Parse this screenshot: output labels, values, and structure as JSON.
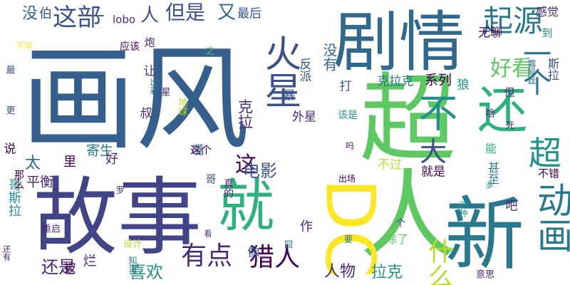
{
  "words": [
    {
      "text": "画风",
      "color": "#355f8d",
      "o": "h"
    },
    {
      "text": "超人",
      "color": "#5ec962",
      "o": "v"
    },
    {
      "text": "故事",
      "color": "#414487",
      "o": "h"
    },
    {
      "text": "剧情",
      "color": "#31688e",
      "o": "h"
    },
    {
      "text": "新",
      "color": "#2a788e",
      "o": "h"
    },
    {
      "text": "DC",
      "color": "#fde725",
      "o": "r"
    },
    {
      "text": "就",
      "color": "#2db27d",
      "o": "h"
    },
    {
      "text": "火星",
      "color": "#3b528b",
      "o": "v"
    },
    {
      "text": "还",
      "color": "#2db27d",
      "o": "h"
    },
    {
      "text": "一个",
      "color": "#2a788e",
      "o": "v"
    },
    {
      "text": "动画",
      "color": "#2a788e",
      "o": "v"
    },
    {
      "text": "起源",
      "color": "#2a788e",
      "o": "h"
    },
    {
      "text": "不",
      "color": "#21918c",
      "o": "h"
    },
    {
      "text": "超",
      "color": "#21918c",
      "o": "h"
    },
    {
      "text": "大",
      "color": "#3b528b",
      "o": "h"
    },
    {
      "text": "有点",
      "color": "#482878",
      "o": "h"
    },
    {
      "text": "猎人",
      "color": "#440154",
      "o": "h"
    },
    {
      "text": "这部",
      "color": "#3b528b",
      "o": "h"
    },
    {
      "text": "但是",
      "color": "#3b528b",
      "o": "h"
    },
    {
      "text": "好看",
      "color": "#5ec962",
      "o": "h"
    },
    {
      "text": "什么",
      "color": "#b5de2b",
      "o": "v"
    },
    {
      "text": "没有",
      "color": "#31688e",
      "o": "v"
    },
    {
      "text": "人",
      "color": "#3b528b",
      "o": "h"
    },
    {
      "text": "又",
      "color": "#31688e",
      "o": "h"
    },
    {
      "text": "这",
      "color": "#440154",
      "o": "h"
    },
    {
      "text": "电影",
      "color": "#3b528b",
      "o": "h"
    },
    {
      "text": "太",
      "color": "#31688e",
      "o": "h"
    },
    {
      "text": "还是",
      "color": "#482878",
      "o": "h"
    },
    {
      "text": "喜欢",
      "color": "#21918c",
      "o": "h"
    },
    {
      "text": "人物",
      "color": "#482878",
      "o": "h"
    },
    {
      "text": "拉克",
      "color": "#21918c",
      "o": "h"
    },
    {
      "text": "没",
      "color": "#31688e",
      "o": "h"
    },
    {
      "text": "伯",
      "color": "#3b528b",
      "o": "h"
    },
    {
      "text": "—",
      "color": "#3b528b",
      "o": "h"
    },
    {
      "text": "lobo",
      "color": "#482878",
      "o": "h"
    },
    {
      "text": "最后",
      "color": "#3b528b",
      "o": "h"
    },
    {
      "text": "感觉",
      "color": "#482878",
      "o": "h"
    },
    {
      "text": "无聊",
      "color": "#440154",
      "o": "h"
    },
    {
      "text": "到",
      "color": "#21918c",
      "o": "h"
    },
    {
      "text": "炮",
      "color": "#482878",
      "o": "h"
    },
    {
      "text": "之",
      "color": "#5ec962",
      "o": "h"
    },
    {
      "text": "反派",
      "color": "#3b528b",
      "o": "v"
    },
    {
      "text": "克拉克",
      "color": "#2a788e",
      "o": "h"
    },
    {
      "text": "系列",
      "color": "#440154",
      "o": "h"
    },
    {
      "text": "让",
      "color": "#482878",
      "o": "h"
    },
    {
      "text": "狼",
      "color": "#21918c",
      "o": "h"
    },
    {
      "text": "但",
      "color": "#482878",
      "o": "h"
    },
    {
      "text": "暴",
      "color": "#3b528b",
      "o": "h"
    },
    {
      "text": "打",
      "color": "#3b528b",
      "o": "h"
    },
    {
      "text": "叔",
      "color": "#482878",
      "o": "h"
    },
    {
      "text": "星",
      "color": "#482878",
      "o": "h"
    },
    {
      "text": "地球",
      "color": "#b5de2b",
      "o": "v"
    },
    {
      "text": "克拉",
      "color": "#482878",
      "o": "v"
    },
    {
      "text": "外星",
      "color": "#482878",
      "o": "h"
    },
    {
      "text": "该是",
      "color": "#21918c",
      "o": "h"
    },
    {
      "text": "出彩",
      "color": "#2a788e",
      "o": "v"
    },
    {
      "text": "应该",
      "color": "#440154",
      "o": "h"
    },
    {
      "text": "寄生",
      "color": "#2a788e",
      "o": "h"
    },
    {
      "text": "嘴",
      "color": "#31688e",
      "o": "h"
    },
    {
      "text": "这个",
      "color": "#440154",
      "o": "h"
    },
    {
      "text": "里",
      "color": "#440154",
      "o": "h"
    },
    {
      "text": "好",
      "color": "#482878",
      "o": "h"
    },
    {
      "text": "能",
      "color": "#2db27d",
      "o": "h"
    },
    {
      "text": "死",
      "color": "#482878",
      "o": "h"
    },
    {
      "text": "不过",
      "color": "#b5de2b",
      "o": "h"
    },
    {
      "text": "就是",
      "color": "#440154",
      "o": "h"
    },
    {
      "text": "甚至",
      "color": "#2a788e",
      "o": "v"
    },
    {
      "text": "吧",
      "color": "#482878",
      "o": "h"
    },
    {
      "text": "不错",
      "color": "#440154",
      "o": "h"
    },
    {
      "text": "多",
      "color": "#21918c",
      "o": "h"
    },
    {
      "text": "出场",
      "color": "#440154",
      "o": "h"
    },
    {
      "text": "吗",
      "color": "#482878",
      "o": "h"
    },
    {
      "text": "哥",
      "color": "#3b528b",
      "o": "h"
    },
    {
      "text": "平衡",
      "color": "#482878",
      "o": "h"
    },
    {
      "text": "哥斯拉",
      "color": "#21918c",
      "o": "v"
    },
    {
      "text": "那么",
      "color": "#440154",
      "o": "v"
    },
    {
      "text": "说",
      "color": "#440154",
      "o": "h"
    },
    {
      "text": "更",
      "color": "#3b528b",
      "o": "h"
    },
    {
      "text": "最",
      "color": "#3b528b",
      "o": "h"
    },
    {
      "text": "不知",
      "color": "#fde725",
      "o": "h"
    },
    {
      "text": "还有",
      "color": "#482878",
      "o": "v"
    },
    {
      "text": "知道",
      "color": "#2a788e",
      "o": "v"
    },
    {
      "text": "罗",
      "color": "#482878",
      "o": "h"
    },
    {
      "text": "重启",
      "color": "#482878",
      "o": "h"
    },
    {
      "text": "设计",
      "color": "#b5de2b",
      "o": "h"
    },
    {
      "text": "真的",
      "color": "#482878",
      "o": "v"
    },
    {
      "text": "作",
      "color": "#482878",
      "o": "h"
    },
    {
      "text": "看",
      "color": "#482878",
      "o": "h"
    },
    {
      "text": "像",
      "color": "#3b528b",
      "o": "h"
    },
    {
      "text": "囧",
      "color": "#2a788e",
      "o": "h"
    },
    {
      "text": "被",
      "color": "#440154",
      "o": "h"
    },
    {
      "text": "烂",
      "color": "#482878",
      "o": "h"
    },
    {
      "text": "要",
      "color": "#2a788e",
      "o": "h"
    },
    {
      "text": "个",
      "color": "#3b528b",
      "o": "h"
    },
    {
      "text": "除了",
      "color": "#5ec962",
      "o": "h"
    },
    {
      "text": "这种",
      "color": "#21918c",
      "o": "v"
    },
    {
      "text": "意思",
      "color": "#482878",
      "o": "h"
    },
    {
      "text": "斯拉",
      "color": "#3b528b",
      "o": "v"
    },
    {
      "text": "露易丝",
      "color": "#31688e",
      "o": "v"
    },
    {
      "text": "啥",
      "color": "#482878",
      "o": "h"
    }
  ]
}
